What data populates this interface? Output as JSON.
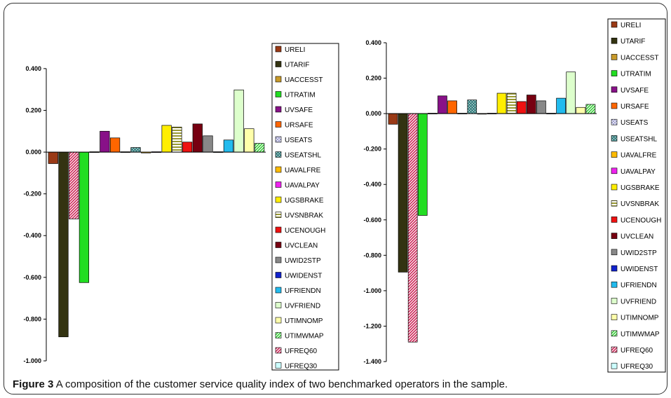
{
  "caption": {
    "label": "Figure 3",
    "text": " A composition of the customer service quality index of two benchmarked operators in the sample."
  },
  "series_styles": [
    {
      "name": "URELI",
      "color": "#9a3a16",
      "pattern": "solid"
    },
    {
      "name": "UTARIF",
      "color": "#333311",
      "pattern": "solid"
    },
    {
      "name": "UACCESST",
      "color": "#c89a2a",
      "pattern": "solid"
    },
    {
      "name": "UTRATIM",
      "color": "#22dd22",
      "pattern": "solid"
    },
    {
      "name": "UVSAFE",
      "color": "#881188",
      "pattern": "solid"
    },
    {
      "name": "URSAFE",
      "color": "#ff6600",
      "pattern": "solid"
    },
    {
      "name": "USEATS",
      "color": "#9999cc",
      "pattern": "cross"
    },
    {
      "name": "USEATSHL",
      "color": "#448888",
      "pattern": "dots"
    },
    {
      "name": "UAVALFRE",
      "color": "#ffbb00",
      "pattern": "solid"
    },
    {
      "name": "UAVALPAY",
      "color": "#ee22ee",
      "pattern": "solid"
    },
    {
      "name": "UGSBRAKE",
      "color": "#ffee00",
      "pattern": "solid"
    },
    {
      "name": "UVSNBRAK",
      "color": "#999933",
      "pattern": "hstripes"
    },
    {
      "name": "UCENOUGH",
      "color": "#ee1111",
      "pattern": "solid"
    },
    {
      "name": "UVCLEAN",
      "color": "#770011",
      "pattern": "solid"
    },
    {
      "name": "UWID2STP",
      "color": "#888888",
      "pattern": "solid"
    },
    {
      "name": "UWIDENST",
      "color": "#1122cc",
      "pattern": "solid"
    },
    {
      "name": "UFRIENDN",
      "color": "#22bbee",
      "pattern": "solid"
    },
    {
      "name": "UVFRIEND",
      "color": "#ddffcc",
      "pattern": "solid"
    },
    {
      "name": "UTIMNOMP",
      "color": "#ffffaa",
      "pattern": "solid"
    },
    {
      "name": "UTIMWMAP",
      "color": "#33cc33",
      "pattern": "diag"
    },
    {
      "name": "UFREQ60",
      "color": "#cc2255",
      "pattern": "diag"
    },
    {
      "name": "UFREQ30",
      "color": "#ccffff",
      "pattern": "solid"
    }
  ],
  "chart_data": [
    {
      "type": "bar",
      "title": "",
      "xlabel": "",
      "ylabel": "",
      "ylim": [
        -1.0,
        0.45
      ],
      "yticks": [
        "0.400",
        "0.200",
        "0.000",
        "-0.200",
        "-0.400",
        "-0.600",
        "-0.800",
        "-1.000"
      ],
      "ytick_values": [
        0.4,
        0.2,
        0.0,
        -0.2,
        -0.4,
        -0.6,
        -0.8,
        -1.0
      ],
      "legend": [
        "URELI",
        "UTARIF",
        "UACCESST",
        "UTRATIM",
        "UVSAFE",
        "URSAFE",
        "USEATS",
        "USEATSHL",
        "UAVALFRE",
        "UAVALPAY",
        "UGSBRAKE",
        "UVSNBRAK",
        "UCENOUGH",
        "UVCLEAN",
        "UWID2STP",
        "UWIDENST",
        "UFRIENDN",
        "UVFRIEND",
        "UTIMNOMP",
        "UTIMWMAP",
        "UFREQ60",
        "UFREQ30"
      ],
      "legend_position": "right",
      "grid": false,
      "series": [
        {
          "name": "URELI",
          "value": -0.055
        },
        {
          "name": "UTARIF",
          "value": -0.885
        },
        {
          "name": "UFREQ60",
          "value": -0.32
        },
        {
          "name": "UTRATIM",
          "value": -0.625
        },
        {
          "name": "UACCESST",
          "value": 0.0
        },
        {
          "name": "UVSAFE",
          "value": 0.1
        },
        {
          "name": "URSAFE",
          "value": 0.068
        },
        {
          "name": "USEATS",
          "value": 0.0
        },
        {
          "name": "USEATSHL",
          "value": 0.022
        },
        {
          "name": "UAVALFRE",
          "value": -0.004
        },
        {
          "name": "UAVALPAY",
          "value": 0.0
        },
        {
          "name": "UGSBRAKE",
          "value": 0.128
        },
        {
          "name": "UVSNBRAK",
          "value": 0.12
        },
        {
          "name": "UCENOUGH",
          "value": 0.048
        },
        {
          "name": "UVCLEAN",
          "value": 0.135
        },
        {
          "name": "UWID2STP",
          "value": 0.078
        },
        {
          "name": "UWIDENST",
          "value": 0.0
        },
        {
          "name": "UFRIENDN",
          "value": 0.058
        },
        {
          "name": "UVFRIEND",
          "value": 0.298
        },
        {
          "name": "UTIMNOMP",
          "value": 0.112
        },
        {
          "name": "UTIMWMAP",
          "value": 0.042
        }
      ]
    },
    {
      "type": "bar",
      "title": "",
      "xlabel": "",
      "ylabel": "",
      "ylim": [
        -1.4,
        0.4
      ],
      "yticks": [
        "0.400",
        "0.200",
        "0.000",
        "-0.200",
        "-0.400",
        "-0.600",
        "-0.800",
        "-1.000",
        "-1.200",
        "-1.400"
      ],
      "ytick_values": [
        0.4,
        0.2,
        0.0,
        -0.2,
        -0.4,
        -0.6,
        -0.8,
        -1.0,
        -1.2,
        -1.4
      ],
      "legend": [
        "URELI",
        "UTARIF",
        "UACCESST",
        "UTRATIM",
        "UVSAFE",
        "URSAFE",
        "USEATS",
        "USEATSHL",
        "UAVALFRE",
        "UAVALPAY",
        "UGSBRAKE",
        "UVSNBRAK",
        "UCENOUGH",
        "UVCLEAN",
        "UWID2STP",
        "UWIDENST",
        "UFRIENDN",
        "UVFRIEND",
        "UTIMNOMP",
        "UTIMWMAP",
        "UFREQ60",
        "UFREQ30"
      ],
      "legend_position": "right",
      "grid": false,
      "series": [
        {
          "name": "URELI",
          "value": -0.06
        },
        {
          "name": "UTARIF",
          "value": -0.895
        },
        {
          "name": "UFREQ60",
          "value": -1.29
        },
        {
          "name": "UTRATIM",
          "value": -0.575
        },
        {
          "name": "UACCESST",
          "value": 0.0
        },
        {
          "name": "UVSAFE",
          "value": 0.1
        },
        {
          "name": "URSAFE",
          "value": 0.072
        },
        {
          "name": "USEATS",
          "value": 0.0
        },
        {
          "name": "USEATSHL",
          "value": 0.077
        },
        {
          "name": "UAVALFRE",
          "value": -0.003
        },
        {
          "name": "UAVALPAY",
          "value": 0.0
        },
        {
          "name": "UGSBRAKE",
          "value": 0.115
        },
        {
          "name": "UVSNBRAK",
          "value": 0.115
        },
        {
          "name": "UCENOUGH",
          "value": 0.068
        },
        {
          "name": "UVCLEAN",
          "value": 0.105
        },
        {
          "name": "UWID2STP",
          "value": 0.072
        },
        {
          "name": "UWIDENST",
          "value": 0.0
        },
        {
          "name": "UFRIENDN",
          "value": 0.087
        },
        {
          "name": "UVFRIEND",
          "value": 0.235
        },
        {
          "name": "UTIMNOMP",
          "value": 0.035
        },
        {
          "name": "UTIMWMAP",
          "value": 0.052
        }
      ]
    }
  ]
}
